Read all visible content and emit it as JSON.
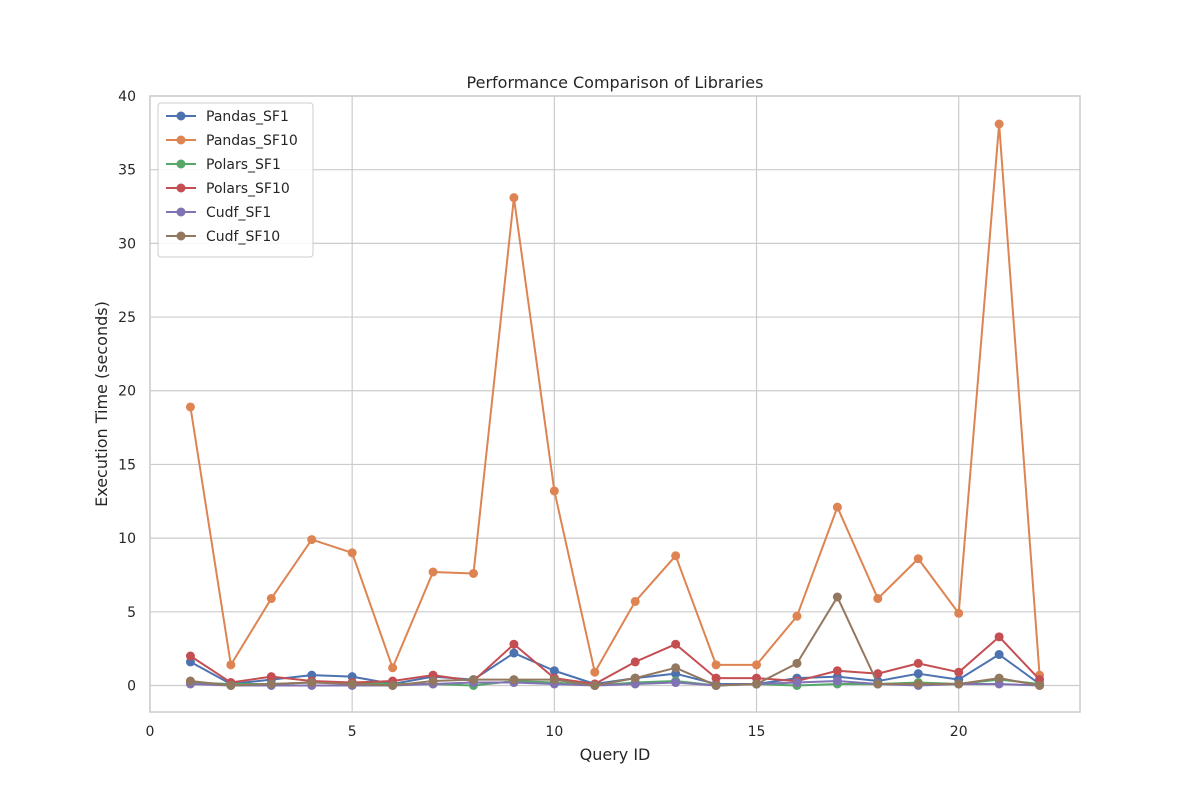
{
  "chart_data": {
    "type": "line",
    "title": "Performance Comparison of Libraries",
    "xlabel": "Query ID",
    "ylabel": "Execution Time (seconds)",
    "xlim": [
      0,
      23
    ],
    "ylim": [
      -1.8,
      40
    ],
    "xticks": [
      0,
      5,
      10,
      15,
      20
    ],
    "yticks": [
      0,
      5,
      10,
      15,
      20,
      25,
      30,
      35,
      40
    ],
    "grid": true,
    "legend_position": "top-left",
    "x": [
      1,
      2,
      3,
      4,
      5,
      6,
      7,
      8,
      9,
      10,
      11,
      12,
      13,
      14,
      15,
      16,
      17,
      18,
      19,
      20,
      21,
      22
    ],
    "series": [
      {
        "name": "Pandas_SF1",
        "color": "#4c72b0",
        "values": [
          1.6,
          0.1,
          0.4,
          0.7,
          0.6,
          0.1,
          0.6,
          0.4,
          2.2,
          1.0,
          0.1,
          0.5,
          0.8,
          0.1,
          0.1,
          0.5,
          0.6,
          0.3,
          0.8,
          0.4,
          2.1,
          0.1
        ]
      },
      {
        "name": "Pandas_SF10",
        "color": "#dd8452",
        "values": [
          18.9,
          1.4,
          5.9,
          9.9,
          9.0,
          1.2,
          7.7,
          7.6,
          33.1,
          13.2,
          0.9,
          5.7,
          8.8,
          1.4,
          1.4,
          4.7,
          12.1,
          5.9,
          8.6,
          4.9,
          38.1,
          0.7
        ]
      },
      {
        "name": "Polars_SF1",
        "color": "#55a868",
        "values": [
          0.2,
          0.1,
          0.1,
          0.2,
          0.2,
          0.1,
          0.1,
          0.0,
          0.3,
          0.2,
          0.0,
          0.2,
          0.3,
          0.0,
          0.1,
          0.0,
          0.1,
          0.1,
          0.2,
          0.1,
          0.4,
          0.1
        ]
      },
      {
        "name": "Polars_SF10",
        "color": "#c44e52",
        "values": [
          2.0,
          0.2,
          0.6,
          0.3,
          0.2,
          0.3,
          0.7,
          0.3,
          2.8,
          0.5,
          0.1,
          1.6,
          2.8,
          0.5,
          0.5,
          0.3,
          1.0,
          0.8,
          1.5,
          0.9,
          3.3,
          0.4
        ]
      },
      {
        "name": "Cudf_SF1",
        "color": "#8172b3",
        "values": [
          0.1,
          0.0,
          0.0,
          0.0,
          0.0,
          0.0,
          0.1,
          0.2,
          0.2,
          0.1,
          0.0,
          0.1,
          0.2,
          0.0,
          0.1,
          0.2,
          0.3,
          0.1,
          0.0,
          0.1,
          0.1,
          0.0
        ]
      },
      {
        "name": "Cudf_SF10",
        "color": "#937860",
        "values": [
          0.3,
          0.0,
          0.1,
          0.2,
          0.1,
          0.0,
          0.3,
          0.4,
          0.4,
          0.4,
          0.0,
          0.5,
          1.2,
          0.0,
          0.1,
          1.5,
          6.0,
          0.1,
          0.1,
          0.1,
          0.5,
          0.0
        ]
      }
    ]
  }
}
